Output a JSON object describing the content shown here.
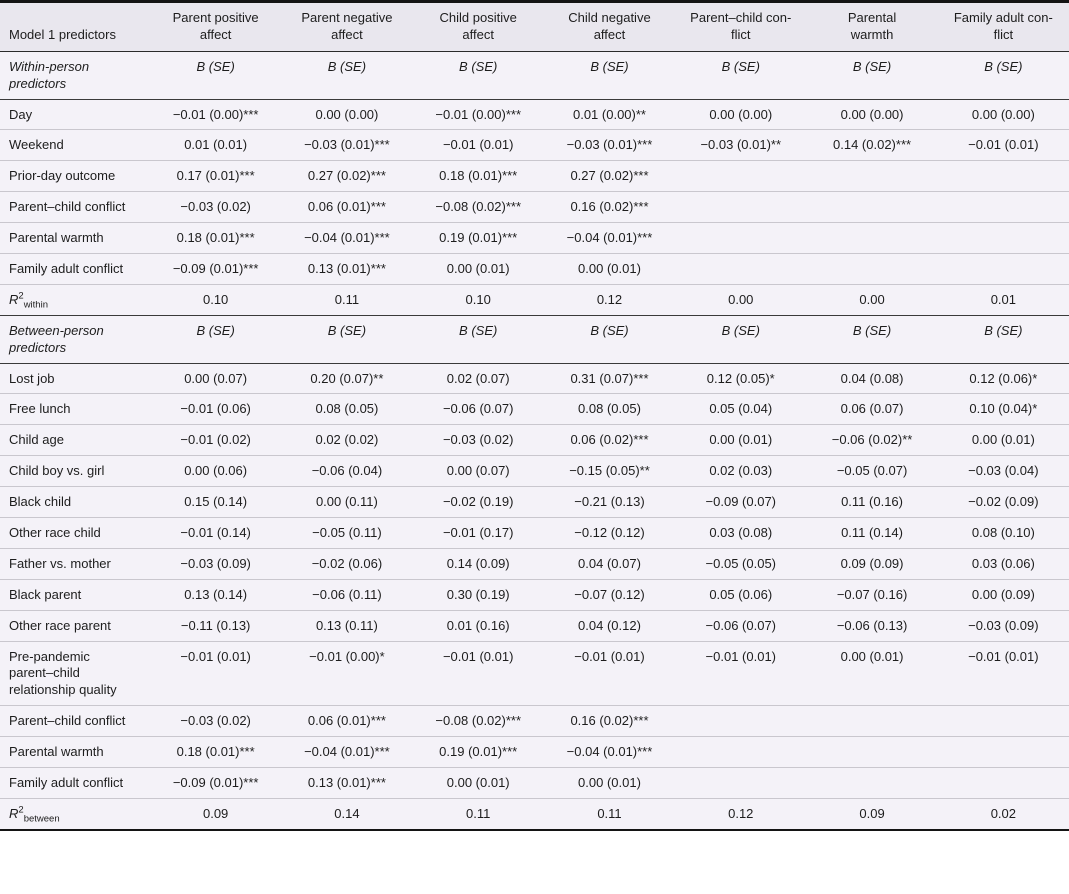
{
  "table": {
    "columns": [
      {
        "lines": [
          "Model 1 predictors"
        ]
      },
      {
        "lines": [
          "Parent positive",
          "affect"
        ]
      },
      {
        "lines": [
          "Parent negative",
          "affect"
        ]
      },
      {
        "lines": [
          "Child positive",
          "affect"
        ]
      },
      {
        "lines": [
          "Child negative",
          "affect"
        ]
      },
      {
        "lines": [
          "Parent–child con-",
          "flict"
        ]
      },
      {
        "lines": [
          "Parental",
          "warmth"
        ]
      },
      {
        "lines": [
          "Family adult con-",
          "flict"
        ]
      }
    ],
    "rows": [
      {
        "type": "section",
        "label": "Within-person predictors",
        "cells": [
          "B (SE)",
          "B (SE)",
          "B (SE)",
          "B (SE)",
          "B (SE)",
          "B (SE)",
          "B (SE)"
        ]
      },
      {
        "type": "data",
        "label": "Day",
        "cells": [
          "−0.01 (0.00)***",
          "0.00 (0.00)",
          "−0.01 (0.00)***",
          "0.01 (0.00)**",
          "0.00 (0.00)",
          "0.00 (0.00)",
          "0.00 (0.00)"
        ]
      },
      {
        "type": "data",
        "label": "Weekend",
        "cells": [
          "0.01 (0.01)",
          "−0.03 (0.01)***",
          "−0.01 (0.01)",
          "−0.03 (0.01)***",
          "−0.03 (0.01)**",
          "0.14 (0.02)***",
          "−0.01 (0.01)"
        ]
      },
      {
        "type": "data",
        "label": "Prior-day outcome",
        "cells": [
          "0.17 (0.01)***",
          "0.27 (0.02)***",
          "0.18 (0.01)***",
          "0.27 (0.02)***",
          "",
          "",
          ""
        ]
      },
      {
        "type": "data",
        "label": "Parent–child conflict",
        "cells": [
          "−0.03 (0.02)",
          "0.06 (0.01)***",
          "−0.08 (0.02)***",
          "0.16 (0.02)***",
          "",
          "",
          ""
        ]
      },
      {
        "type": "data",
        "label": "Parental warmth",
        "cells": [
          "0.18 (0.01)***",
          "−0.04 (0.01)***",
          "0.19 (0.01)***",
          "−0.04 (0.01)***",
          "",
          "",
          ""
        ]
      },
      {
        "type": "data",
        "label": "Family adult conflict",
        "cells": [
          "−0.09 (0.01)***",
          "0.13 (0.01)***",
          "0.00 (0.01)",
          "0.00 (0.01)",
          "",
          "",
          ""
        ]
      },
      {
        "type": "r2",
        "label_base": "R",
        "label_sup": "2",
        "label_sub": "within",
        "cells": [
          "0.10",
          "0.11",
          "0.10",
          "0.12",
          "0.00",
          "0.00",
          "0.01"
        ]
      },
      {
        "type": "section",
        "label": "Between-person predictors",
        "cells": [
          "B (SE)",
          "B (SE)",
          "B (SE)",
          "B (SE)",
          "B (SE)",
          "B (SE)",
          "B (SE)"
        ]
      },
      {
        "type": "data",
        "label": "Lost job",
        "cells": [
          "0.00 (0.07)",
          "0.20 (0.07)**",
          "0.02 (0.07)",
          "0.31 (0.07)***",
          "0.12 (0.05)*",
          "0.04 (0.08)",
          "0.12 (0.06)*"
        ]
      },
      {
        "type": "data",
        "label": "Free lunch",
        "cells": [
          "−0.01 (0.06)",
          "0.08 (0.05)",
          "−0.06 (0.07)",
          "0.08 (0.05)",
          "0.05 (0.04)",
          "0.06 (0.07)",
          "0.10 (0.04)*"
        ]
      },
      {
        "type": "data",
        "label": "Child age",
        "cells": [
          "−0.01 (0.02)",
          "0.02 (0.02)",
          "−0.03 (0.02)",
          "0.06 (0.02)***",
          "0.00 (0.01)",
          "−0.06 (0.02)**",
          "0.00 (0.01)"
        ]
      },
      {
        "type": "data",
        "label": "Child boy vs. girl",
        "cells": [
          "0.00 (0.06)",
          "−0.06 (0.04)",
          "0.00 (0.07)",
          "−0.15 (0.05)**",
          "0.02 (0.03)",
          "−0.05 (0.07)",
          "−0.03 (0.04)"
        ]
      },
      {
        "type": "data",
        "label": "Black child",
        "cells": [
          "0.15 (0.14)",
          "0.00 (0.11)",
          "−0.02 (0.19)",
          "−0.21 (0.13)",
          "−0.09 (0.07)",
          "0.11 (0.16)",
          "−0.02 (0.09)"
        ]
      },
      {
        "type": "data",
        "label": "Other race child",
        "cells": [
          "−0.01 (0.14)",
          "−0.05 (0.11)",
          "−0.01 (0.17)",
          "−0.12 (0.12)",
          "0.03 (0.08)",
          "0.11 (0.14)",
          "0.08 (0.10)"
        ]
      },
      {
        "type": "data",
        "label": "Father vs. mother",
        "cells": [
          "−0.03 (0.09)",
          "−0.02 (0.06)",
          "0.14 (0.09)",
          "0.04 (0.07)",
          "−0.05 (0.05)",
          "0.09 (0.09)",
          "0.03 (0.06)"
        ]
      },
      {
        "type": "data",
        "label": "Black parent",
        "cells": [
          "0.13 (0.14)",
          "−0.06 (0.11)",
          "0.30 (0.19)",
          "−0.07 (0.12)",
          "0.05 (0.06)",
          "−0.07 (0.16)",
          "0.00 (0.09)"
        ]
      },
      {
        "type": "data",
        "label": "Other race parent",
        "cells": [
          "−0.11 (0.13)",
          "0.13 (0.11)",
          "0.01 (0.16)",
          "0.04 (0.12)",
          "−0.06 (0.07)",
          "−0.06 (0.13)",
          "−0.03 (0.09)"
        ]
      },
      {
        "type": "data",
        "label": "Pre-pandemic parent–child relationship quality",
        "cells": [
          "−0.01 (0.01)",
          "−0.01 (0.00)*",
          "−0.01 (0.01)",
          "−0.01 (0.01)",
          "−0.01 (0.01)",
          "0.00 (0.01)",
          "−0.01 (0.01)"
        ]
      },
      {
        "type": "data",
        "label": "Parent–child conflict",
        "cells": [
          "−0.03 (0.02)",
          "0.06 (0.01)***",
          "−0.08 (0.02)***",
          "0.16 (0.02)***",
          "",
          "",
          ""
        ]
      },
      {
        "type": "data",
        "label": "Parental warmth",
        "cells": [
          "0.18 (0.01)***",
          "−0.04 (0.01)***",
          "0.19 (0.01)***",
          "−0.04 (0.01)***",
          "",
          "",
          ""
        ]
      },
      {
        "type": "data",
        "label": "Family adult conflict",
        "cells": [
          "−0.09 (0.01)***",
          "0.13 (0.01)***",
          "0.00 (0.01)",
          "0.00 (0.01)",
          "",
          "",
          ""
        ]
      },
      {
        "type": "r2",
        "label_base": "R",
        "label_sup": "2",
        "label_sub": "between",
        "cells": [
          "0.09",
          "0.14",
          "0.11",
          "0.11",
          "0.12",
          "0.09",
          "0.02"
        ]
      }
    ]
  }
}
